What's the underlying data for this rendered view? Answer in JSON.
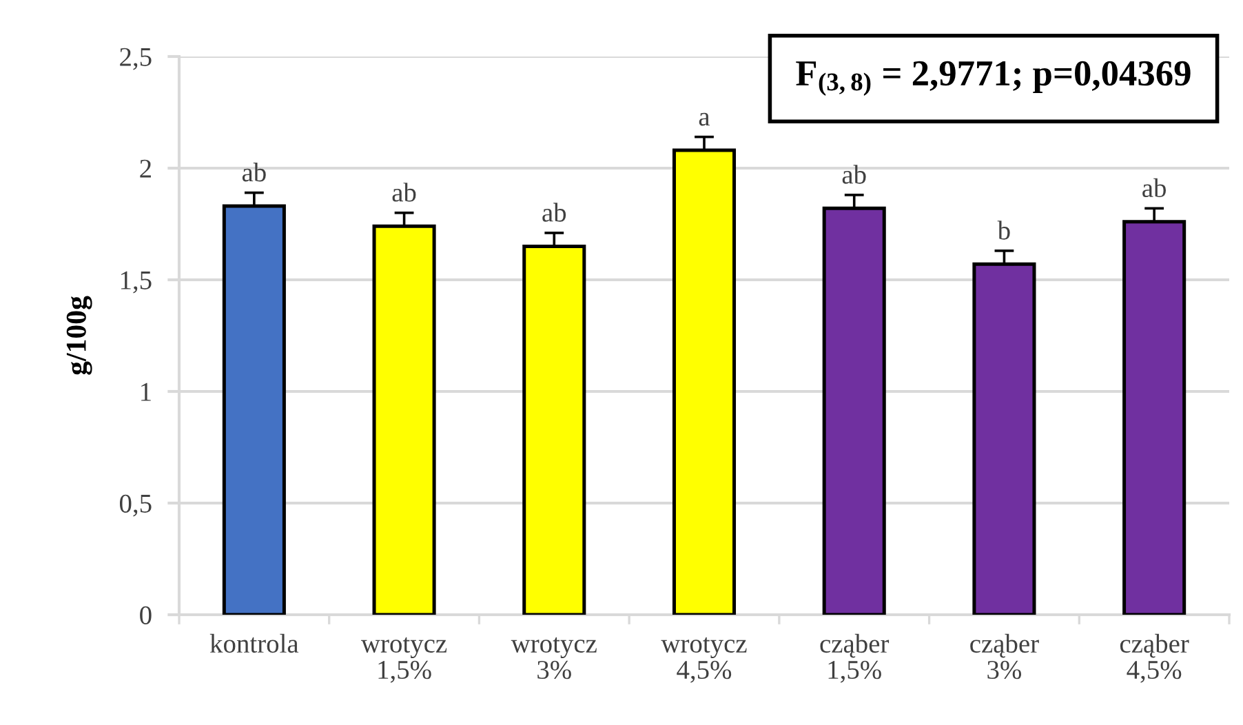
{
  "chart_data": {
    "type": "bar",
    "categories": [
      "kontrola",
      "wrotycz\n1,5%",
      "wrotycz\n3%",
      "wrotycz\n4,5%",
      "cząber\n1,5%",
      "cząber\n3%",
      "cząber\n4,5%"
    ],
    "values": [
      1.83,
      1.74,
      1.65,
      2.08,
      1.82,
      1.57,
      1.76
    ],
    "colors": [
      "#4472c4",
      "#ffff00",
      "#ffff00",
      "#ffff00",
      "#7030a0",
      "#7030a0",
      "#7030a0"
    ],
    "errors": [
      [
        1.83,
        1.89
      ],
      [
        1.74,
        1.8
      ],
      [
        1.65,
        1.71
      ],
      [
        2.08,
        2.14
      ],
      [
        1.82,
        1.88
      ],
      [
        1.57,
        1.63
      ],
      [
        1.76,
        1.82
      ]
    ],
    "ylabel": "g/100g",
    "ylim": [
      0,
      2.5
    ],
    "yticks": [
      0,
      {
        "value": 0.5,
        "label": "0,5"
      },
      1,
      {
        "value": 1.5,
        "label": "1,5"
      },
      2,
      {
        "value": 2.5,
        "label": "2,5"
      }
    ],
    "grid": "y",
    "annotations": [
      "F$_{(3,8)}$ = 2,9771; p=0,04369",
      "ab",
      "ab",
      "ab",
      "a",
      "ab",
      "b",
      "ab"
    ]
  }
}
